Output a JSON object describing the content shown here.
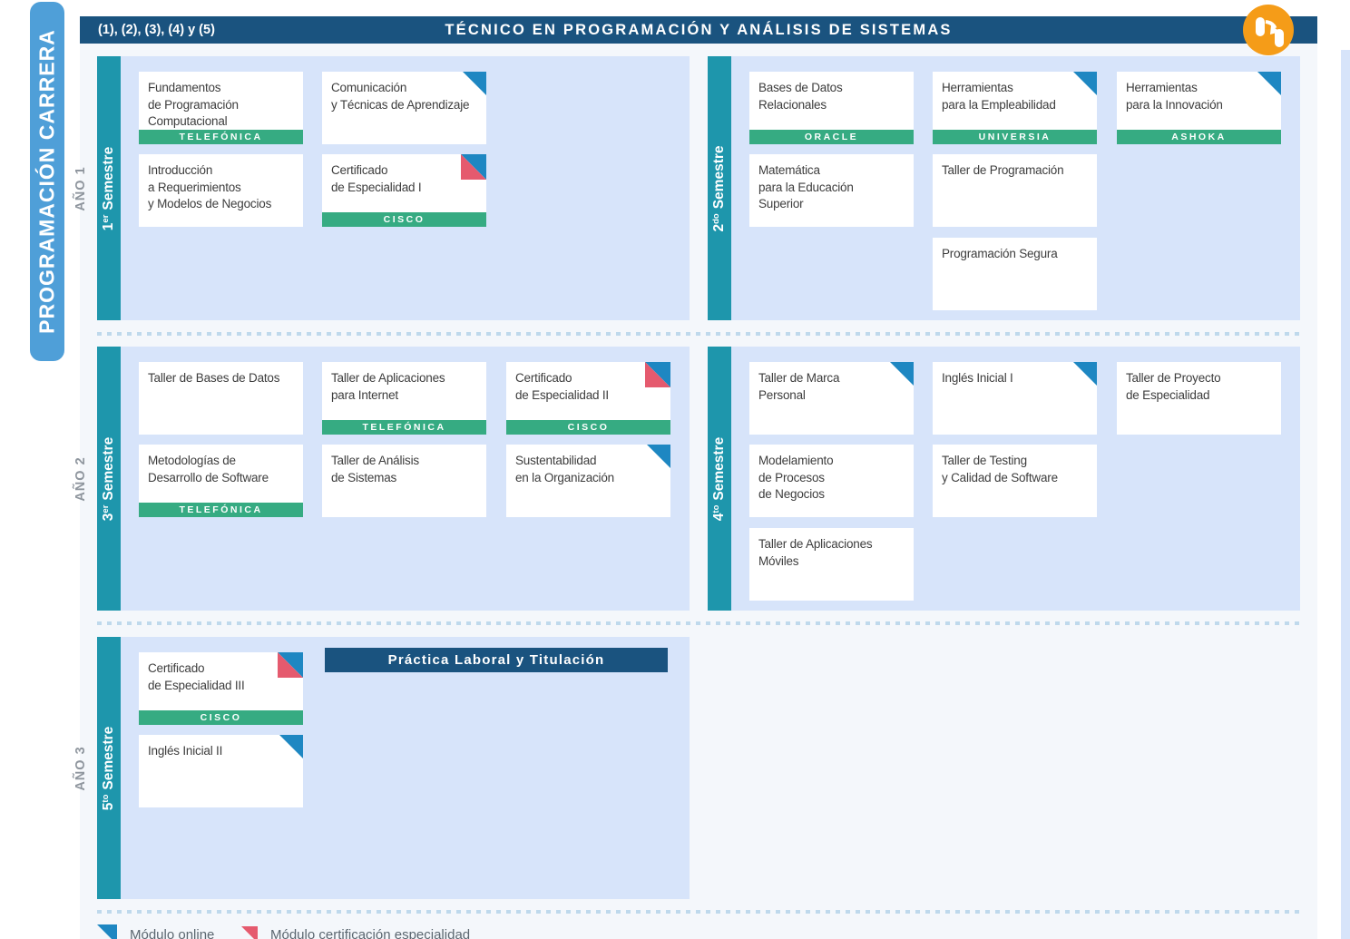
{
  "banner": "PROGRAMACIÓN CARRERA",
  "header": {
    "left_label": "(1), (2), (3), (4) y (5)",
    "title": "TÉCNICO EN PROGRAMACIÓN Y ANÁLISIS DE SISTEMAS"
  },
  "practice_banner": "Práctica Laboral y Titulación",
  "years": [
    {
      "label": "AÑO 1",
      "semesters": [
        {
          "ordinal": "1",
          "ordinal_suffix": "er",
          "word": "Semestre",
          "courses": [
            {
              "lines": [
                "Fundamentos",
                "de Programación",
                "Computacional"
              ],
              "partner": "TELEFÓNICA",
              "marker": null,
              "col": 0,
              "row": 0
            },
            {
              "lines": [
                "Comunicación",
                "y Técnicas de Aprendizaje"
              ],
              "partner": null,
              "marker": "online",
              "col": 1,
              "row": 0
            },
            {
              "lines": [
                "Introducción",
                "a Requerimientos",
                "y Modelos de Negocios"
              ],
              "partner": null,
              "marker": null,
              "col": 0,
              "row": 1
            },
            {
              "lines": [
                "Certificado",
                "de Especialidad I"
              ],
              "partner": "CISCO",
              "marker": "cert",
              "col": 1,
              "row": 1
            }
          ]
        },
        {
          "ordinal": "2",
          "ordinal_suffix": "do",
          "word": "Semestre",
          "courses": [
            {
              "lines": [
                "Bases de Datos",
                "Relacionales"
              ],
              "partner": "ORACLE",
              "marker": null,
              "col": 0,
              "row": 0
            },
            {
              "lines": [
                "Herramientas",
                "para la Empleabilidad"
              ],
              "partner": "UNIVERSIA",
              "marker": "online",
              "col": 1,
              "row": 0
            },
            {
              "lines": [
                "Herramientas",
                "para la Innovación"
              ],
              "partner": "ASHOKA",
              "marker": "online",
              "col": 2,
              "row": 0
            },
            {
              "lines": [
                "Matemática",
                "para la Educación",
                "Superior"
              ],
              "partner": null,
              "marker": null,
              "col": 0,
              "row": 1
            },
            {
              "lines": [
                "Taller de Programación"
              ],
              "partner": null,
              "marker": null,
              "col": 1,
              "row": 1
            },
            {
              "lines": [
                "Programación Segura"
              ],
              "partner": null,
              "marker": null,
              "col": 1,
              "row": 2
            }
          ]
        }
      ]
    },
    {
      "label": "AÑO 2",
      "semesters": [
        {
          "ordinal": "3",
          "ordinal_suffix": "er",
          "word": "Semestre",
          "courses": [
            {
              "lines": [
                "Taller de Bases de Datos"
              ],
              "partner": null,
              "marker": null,
              "col": 0,
              "row": 0
            },
            {
              "lines": [
                "Taller de Aplicaciones",
                "para Internet"
              ],
              "partner": "TELEFÓNICA",
              "marker": null,
              "col": 1,
              "row": 0
            },
            {
              "lines": [
                "Certificado",
                "de Especialidad II"
              ],
              "partner": "CISCO",
              "marker": "cert",
              "col": 2,
              "row": 0
            },
            {
              "lines": [
                "Metodologías de",
                "Desarrollo de Software"
              ],
              "partner": "TELEFÓNICA",
              "marker": null,
              "col": 0,
              "row": 1
            },
            {
              "lines": [
                "Taller de Análisis",
                "de Sistemas"
              ],
              "partner": null,
              "marker": null,
              "col": 1,
              "row": 1
            },
            {
              "lines": [
                "Sustentabilidad",
                "en la Organización"
              ],
              "partner": null,
              "marker": "online",
              "col": 2,
              "row": 1
            }
          ]
        },
        {
          "ordinal": "4",
          "ordinal_suffix": "to",
          "word": "Semestre",
          "courses": [
            {
              "lines": [
                "Taller de Marca",
                "Personal"
              ],
              "partner": null,
              "marker": "online",
              "col": 0,
              "row": 0
            },
            {
              "lines": [
                "Inglés Inicial I"
              ],
              "partner": null,
              "marker": "online",
              "col": 1,
              "row": 0
            },
            {
              "lines": [
                "Taller de Proyecto",
                "de Especialidad"
              ],
              "partner": null,
              "marker": null,
              "col": 2,
              "row": 0
            },
            {
              "lines": [
                "Modelamiento",
                "de Procesos",
                "de Negocios"
              ],
              "partner": null,
              "marker": null,
              "col": 0,
              "row": 1
            },
            {
              "lines": [
                "Taller de Testing",
                "y Calidad de Software"
              ],
              "partner": null,
              "marker": null,
              "col": 1,
              "row": 1
            },
            {
              "lines": [
                "Taller de Aplicaciones",
                "Móviles"
              ],
              "partner": null,
              "marker": null,
              "col": 0,
              "row": 2
            }
          ]
        }
      ]
    },
    {
      "label": "AÑO 3",
      "semesters": [
        {
          "ordinal": "5",
          "ordinal_suffix": "to",
          "word": "Semestre",
          "courses": [
            {
              "lines": [
                "Certificado",
                "de Especialidad III"
              ],
              "partner": "CISCO",
              "marker": "cert",
              "col": 0,
              "row": 0
            },
            {
              "lines": [
                "Inglés Inicial II"
              ],
              "partner": null,
              "marker": "online",
              "col": 0,
              "row": 1
            }
          ]
        }
      ]
    }
  ],
  "legend": [
    {
      "marker": "online",
      "label": "Módulo online"
    },
    {
      "marker": "cert",
      "label": "Módulo certificación especialidad"
    }
  ],
  "colors": {
    "header_blue": "#1a537f",
    "panel_light_blue": "#d7e4fa",
    "semester_teal": "#1e96ac",
    "partner_green": "#36ab82",
    "career_banner_blue": "#4f9fd8",
    "online_marker_blue": "#1e87c2",
    "cert_marker_red": "#e55a6e",
    "logo_orange": "#f59c18"
  }
}
